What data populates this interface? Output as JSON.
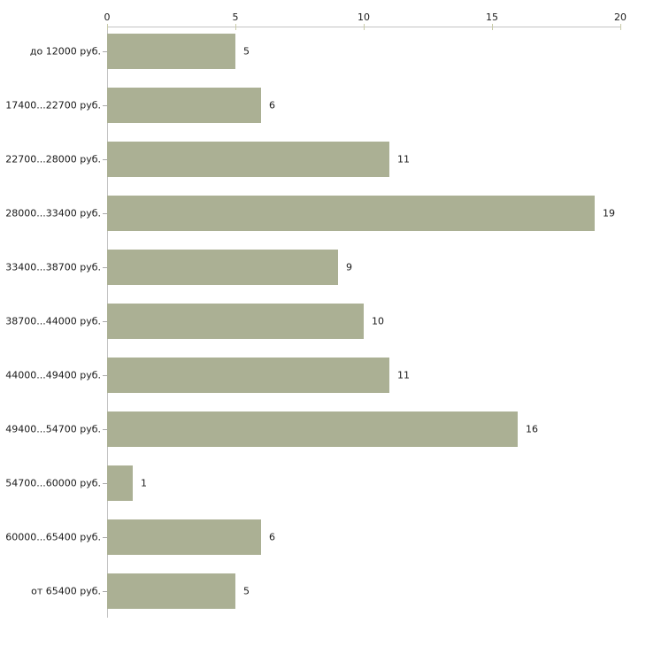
{
  "chart_data": {
    "type": "bar",
    "orientation": "horizontal",
    "title": "",
    "xlabel": "",
    "ylabel": "",
    "categories": [
      "до 12000 руб.",
      "17400...22700 руб.",
      "22700...28000 руб.",
      "28000...33400 руб.",
      "33400...38700 руб.",
      "38700...44000 руб.",
      "44000...49400 руб.",
      "49400...54700 руб.",
      "54700...60000 руб.",
      "60000...65400 руб.",
      "от 65400 руб."
    ],
    "values": [
      5,
      6,
      11,
      19,
      9,
      10,
      11,
      16,
      1,
      6,
      5
    ],
    "value_labels": [
      "5",
      "6",
      "11",
      "19",
      "9",
      "10",
      "11",
      "16",
      "1",
      "6",
      "5"
    ],
    "xlim": [
      0,
      20
    ],
    "x_ticks": [
      "0",
      "5",
      "10",
      "15",
      "20"
    ],
    "x_tick_values": [
      0,
      5,
      10,
      15,
      20
    ],
    "grid": false,
    "legend_position": "none",
    "colors": {
      "bar_fill": "#abb094",
      "axis_line": "#c3c3c3",
      "x_tick_mark": "#c9cba9",
      "category_tick_mark": "#a9a9a9",
      "text": "#1a1a1a",
      "background": "#ffffff"
    }
  }
}
